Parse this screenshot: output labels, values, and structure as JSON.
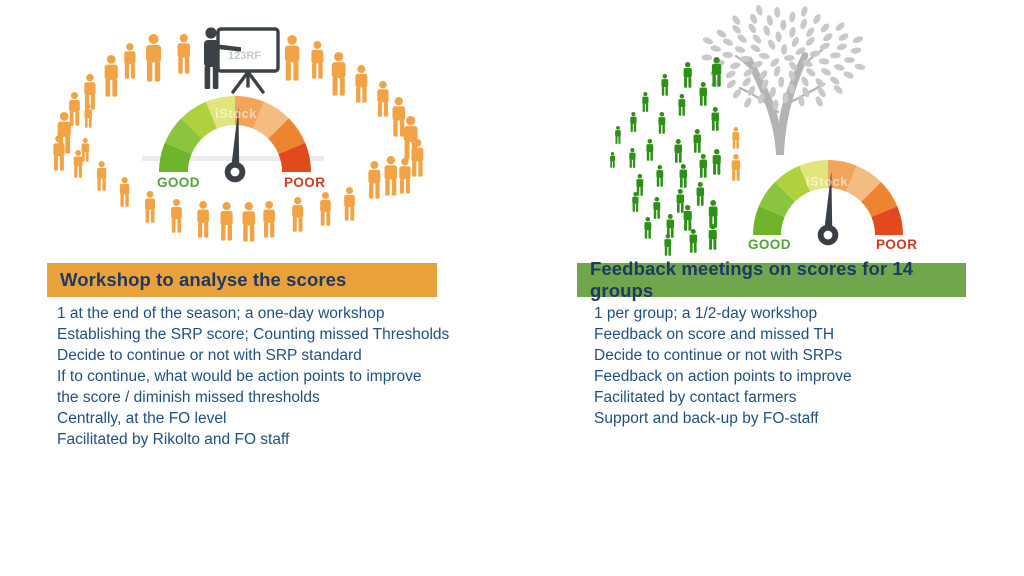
{
  "body_text_color": "#1F5081",
  "left_panel": {
    "header": {
      "label": "Workshop to analyse the scores",
      "bg": "#E9A23B",
      "fg": "#1F3864"
    },
    "body": {
      "line1": "1 at the end of the season; a one-day workshop",
      "line2": "Establishing the SRP score; Counting missed Thresholds",
      "line3": "Decide to continue or not with SRP standard",
      "line4": "If to continue, what would be action points to improve",
      "line5": "the score / diminish missed thresholds",
      "line6": "Centrally, at the FO level",
      "line7": "Facilitated by Rikolto and FO staff"
    },
    "illustration": {
      "people_icon": "person-icon",
      "people_color": "#F2A346",
      "people_count": 33,
      "presenter_color": "#3B4247",
      "board_watermark": "123RF",
      "gauge": {
        "good": "GOOD",
        "poor": "POOR",
        "good_color": "#55A236",
        "poor_color": "#CF3B22",
        "segments": [
          "#6FB42A",
          "#8BC53F",
          "#AFD13E",
          "#E2E47C",
          "#F2A45A",
          "#F5BC82",
          "#ED8430",
          "#E24A1E"
        ],
        "needle_color": "#3A4045",
        "watermark": "iStock"
      }
    }
  },
  "right_panel": {
    "header": {
      "label": "Feedback meetings on scores for 14 groups",
      "bg": "#70A74D",
      "fg": "#1F3864"
    },
    "body": {
      "line1": "1 per group; a 1/2-day workshop",
      "line2": "Feedback on score and missed TH",
      "line3": "Decide to continue or not with SRPs",
      "line4": "Feedback on action points to improve",
      "line5": "Facilitated by contact farmers",
      "line6": "Support and back-up by FO-staff"
    },
    "illustration": {
      "people_icon": "person-icon",
      "people_color": "#2E9117",
      "people_count": 31,
      "highlight_people_color": "#F2A346",
      "highlight_people_count": 2,
      "tree_trunk_color": "#B3B3B3",
      "tree_leaf_color": "#C9C9C9",
      "gauge": {
        "good": "GOOD",
        "poor": "POOR",
        "good_color": "#55A236",
        "poor_color": "#CF3B22",
        "segments": [
          "#6FB42A",
          "#8BC53F",
          "#AFD13E",
          "#E2E47C",
          "#F2A45A",
          "#F5BC82",
          "#ED8430",
          "#E24A1E"
        ],
        "needle_color": "#3A4045",
        "watermark": "iStock"
      }
    }
  }
}
